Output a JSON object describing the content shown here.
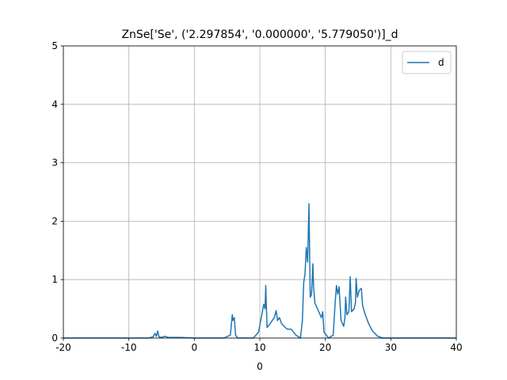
{
  "chart_data": {
    "type": "line",
    "title": "ZnSe['Se', ('2.297854', '0.000000', '5.779050')]_d",
    "x_label": "0",
    "x": [
      -20,
      -7,
      -6.3,
      -6,
      -5.8,
      -5.6,
      -5.4,
      -5,
      -4.5,
      -4,
      -2,
      0,
      4.5,
      5.5,
      5.8,
      5.9,
      6.1,
      6.3,
      6.6,
      9,
      9.8,
      10.3,
      10.6,
      10.8,
      10.9,
      11.1,
      11.6,
      12.2,
      12.5,
      12.7,
      13,
      13.3,
      13.7,
      14.2,
      14.8,
      15.5,
      16.2,
      16.5,
      16.7,
      16.9,
      17.1,
      17.3,
      17.5,
      17.6,
      17.7,
      17.9,
      18.1,
      18.2,
      18.4,
      18.6,
      19,
      19.4,
      19.6,
      19.8,
      20.5,
      21.2,
      21.5,
      21.7,
      21.9,
      22.1,
      22.4,
      22.8,
      23,
      23.1,
      23.3,
      23.6,
      23.8,
      24,
      24.4,
      24.6,
      24.7,
      24.9,
      25.2,
      25.5,
      25.7,
      26.1,
      26.6,
      27.2,
      28,
      28.8,
      40
    ],
    "series": [
      {
        "name": "d",
        "color": "#1f77b4",
        "values": [
          0,
          0,
          0.02,
          0.08,
          0.03,
          0.12,
          0.02,
          0.01,
          0.03,
          0.01,
          0.01,
          0,
          0,
          0.05,
          0.4,
          0.3,
          0.35,
          0.05,
          0,
          0,
          0.1,
          0.4,
          0.58,
          0.5,
          0.9,
          0.18,
          0.25,
          0.35,
          0.47,
          0.3,
          0.35,
          0.25,
          0.2,
          0.15,
          0.15,
          0.05,
          0,
          0.3,
          0.95,
          1.1,
          1.55,
          1.3,
          2.3,
          1.5,
          0.7,
          0.75,
          1.27,
          0.9,
          0.6,
          0.55,
          0.45,
          0.35,
          0.45,
          0.1,
          0,
          0.05,
          0.6,
          0.9,
          0.75,
          0.88,
          0.3,
          0.2,
          0.35,
          0.7,
          0.4,
          0.45,
          1.05,
          0.45,
          0.5,
          0.6,
          1.02,
          0.7,
          0.82,
          0.85,
          0.55,
          0.4,
          0.25,
          0.12,
          0.03,
          0,
          0
        ]
      }
    ],
    "xlim": [
      -20,
      40
    ],
    "xticks": [
      -20,
      -10,
      0,
      10,
      20,
      30,
      40
    ],
    "ylim": [
      0,
      5
    ],
    "yticks": [
      0,
      1,
      2,
      3,
      4,
      5
    ],
    "grid": true,
    "legend": "upper right"
  }
}
